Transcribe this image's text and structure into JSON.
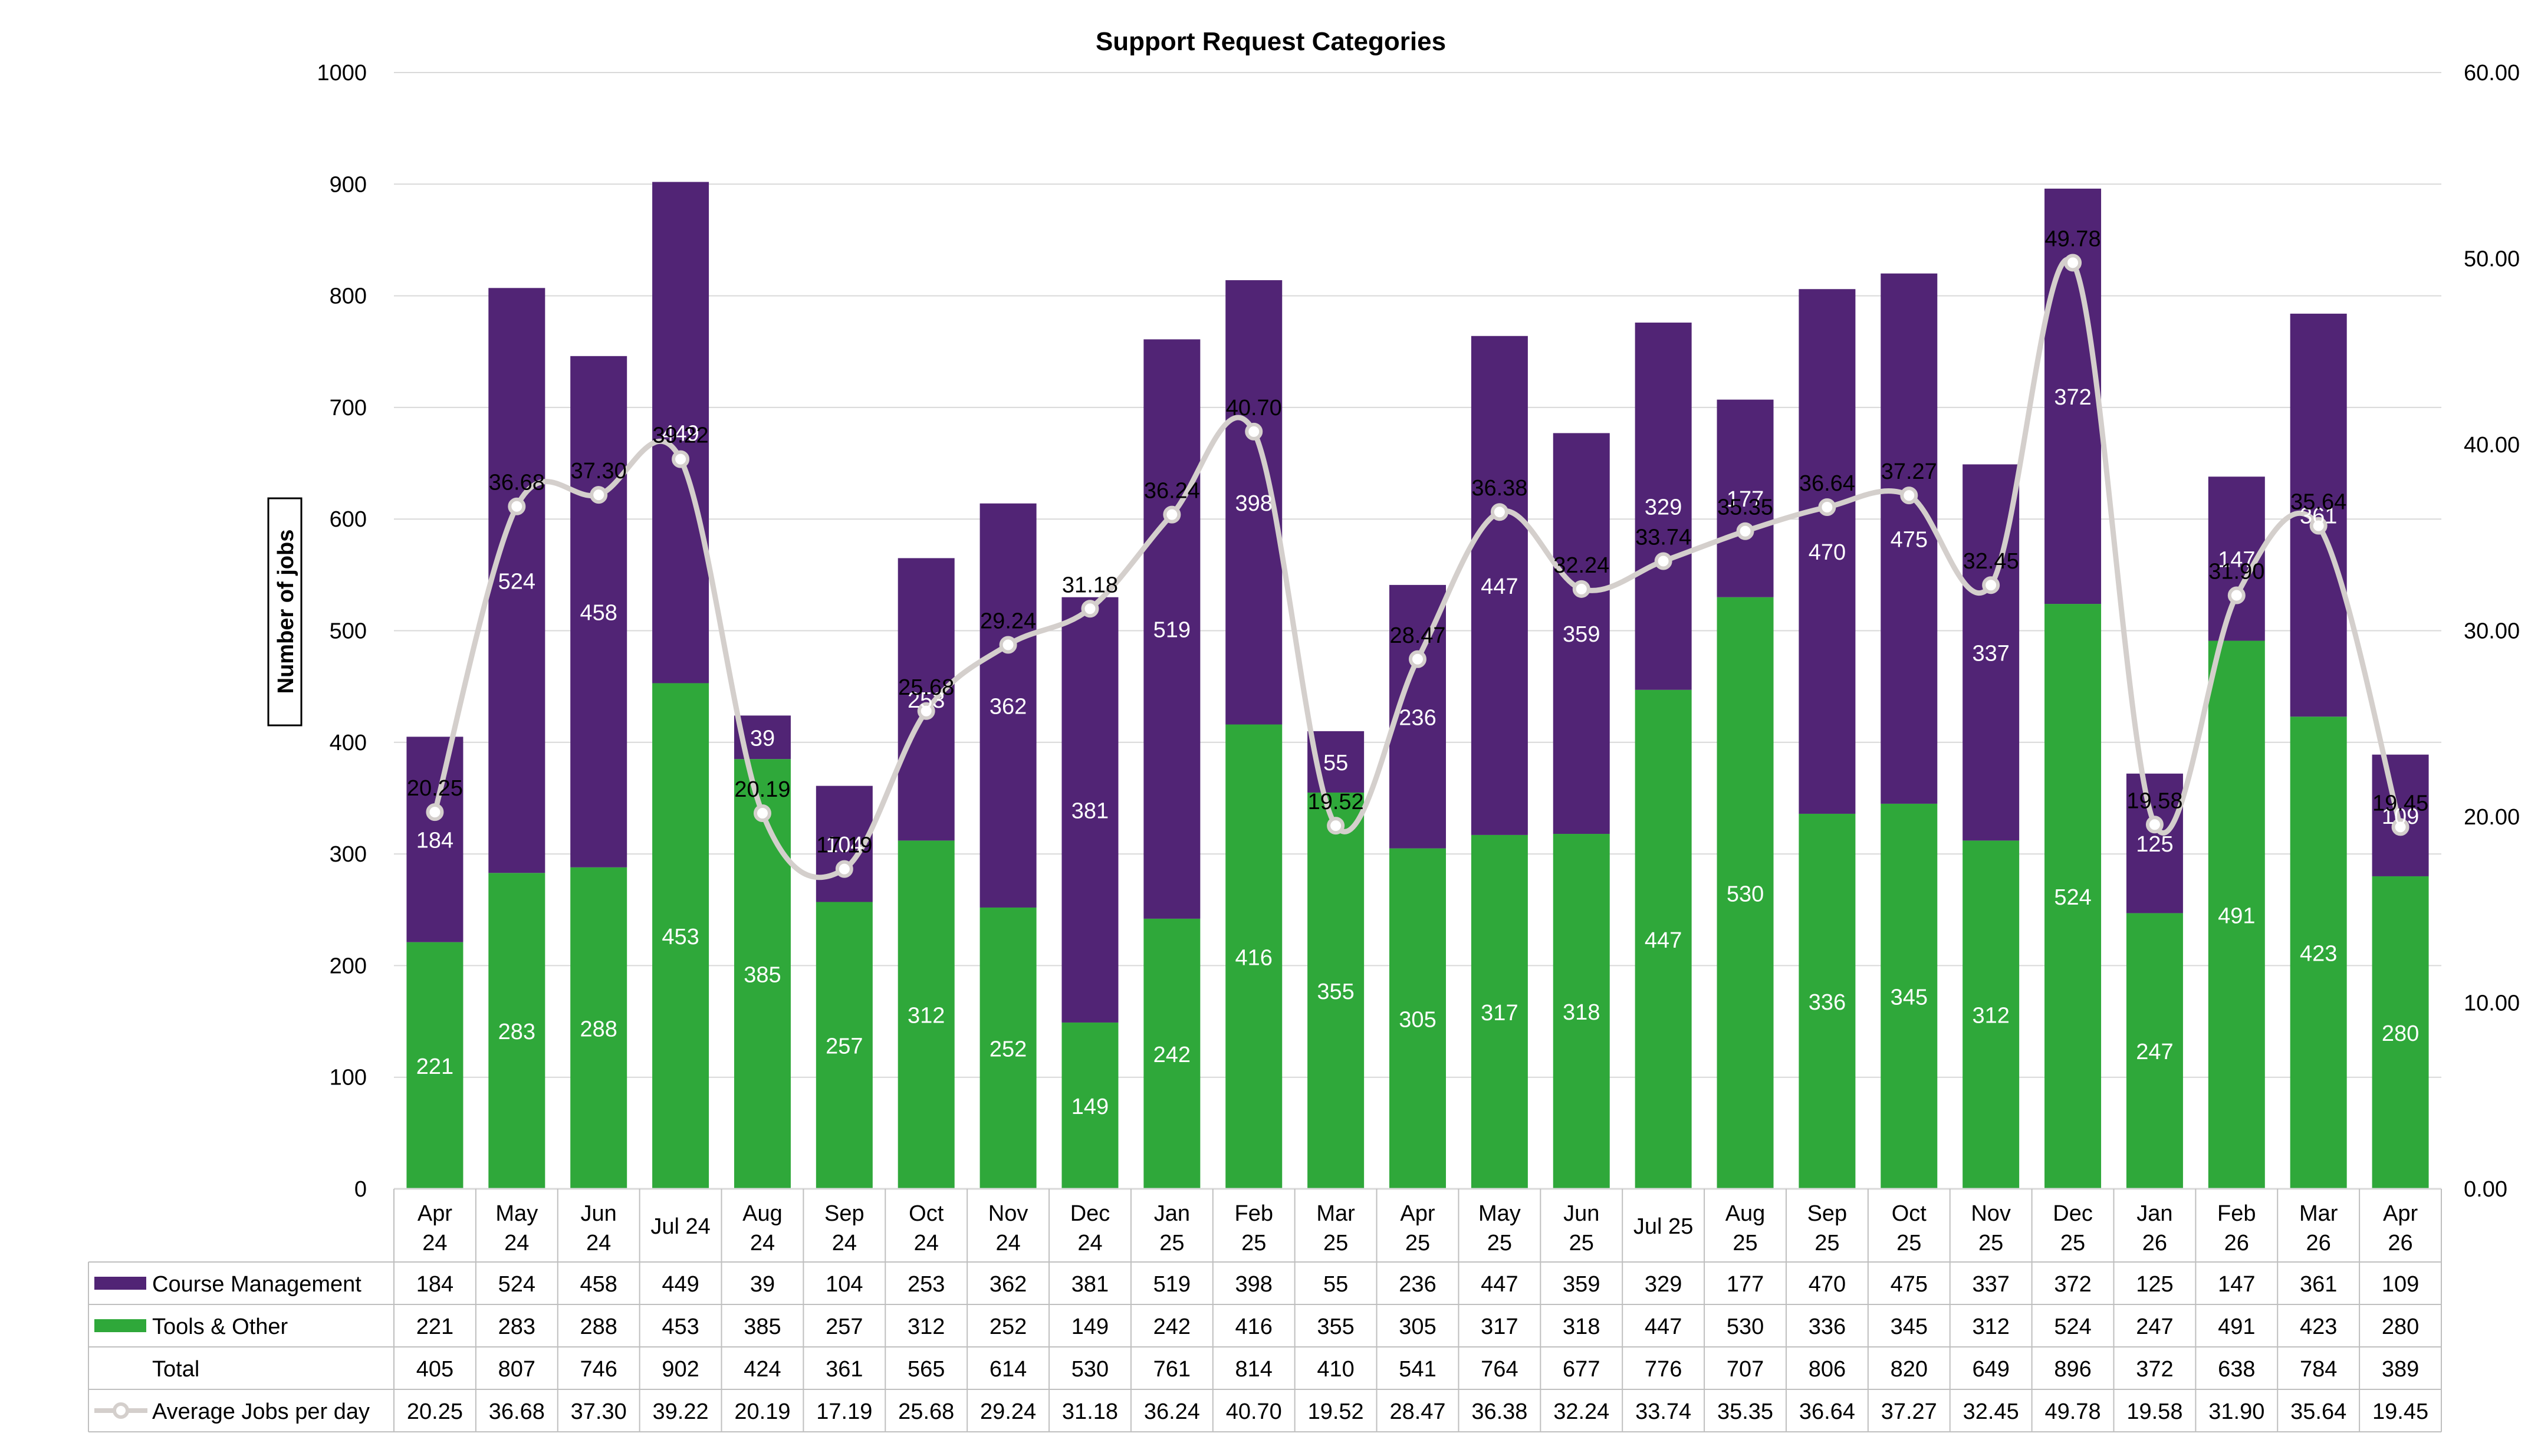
{
  "chart_data": {
    "type": "bar",
    "stacked": true,
    "title": "Support Request Categories",
    "ylabel": "Number of jobs",
    "ylim": [
      0,
      1000
    ],
    "yticks": [
      0,
      100,
      200,
      300,
      400,
      500,
      600,
      700,
      800,
      900,
      1000
    ],
    "y2lim": [
      0,
      60
    ],
    "y2ticks": [
      "0.00",
      "10.00",
      "20.00",
      "30.00",
      "40.00",
      "50.00",
      "60.00"
    ],
    "grid": true,
    "legend": "data-table",
    "categories": [
      [
        "Apr",
        "24"
      ],
      [
        "May",
        "24"
      ],
      [
        "Jun",
        "24"
      ],
      [
        "Jul 24"
      ],
      [
        "Aug",
        "24"
      ],
      [
        "Sep",
        "24"
      ],
      [
        "Oct",
        "24"
      ],
      [
        "Nov",
        "24"
      ],
      [
        "Dec",
        "24"
      ],
      [
        "Jan",
        "25"
      ],
      [
        "Feb",
        "25"
      ],
      [
        "Mar",
        "25"
      ],
      [
        "Apr",
        "25"
      ],
      [
        "May",
        "25"
      ],
      [
        "Jun",
        "25"
      ],
      [
        "Jul 25"
      ],
      [
        "Aug",
        "25"
      ],
      [
        "Sep",
        "25"
      ],
      [
        "Oct",
        "25"
      ],
      [
        "Nov",
        "25"
      ],
      [
        "Dec",
        "25"
      ],
      [
        "Jan",
        "26"
      ],
      [
        "Feb",
        "26"
      ],
      [
        "Mar",
        "26"
      ],
      [
        "Apr",
        "26"
      ]
    ],
    "series": [
      {
        "name": "Tools & Other",
        "kind": "bar",
        "color": "#2fa83a",
        "values": [
          221,
          283,
          288,
          453,
          385,
          257,
          312,
          252,
          149,
          242,
          416,
          355,
          305,
          317,
          318,
          447,
          530,
          336,
          345,
          312,
          524,
          247,
          491,
          423,
          280
        ]
      },
      {
        "name": "Course Management",
        "kind": "bar",
        "color": "#512475",
        "values": [
          184,
          524,
          458,
          449,
          39,
          104,
          253,
          362,
          381,
          519,
          398,
          55,
          236,
          447,
          359,
          329,
          177,
          470,
          475,
          337,
          372,
          125,
          147,
          361,
          109
        ]
      },
      {
        "name": "Average Jobs per day",
        "kind": "line",
        "axis": "secondary",
        "color": "#d4cfcc",
        "values": [
          20.25,
          36.68,
          37.3,
          39.22,
          20.19,
          17.19,
          25.68,
          29.24,
          31.18,
          36.24,
          40.7,
          19.52,
          28.47,
          36.38,
          32.24,
          33.74,
          35.35,
          36.64,
          37.27,
          32.45,
          49.78,
          19.58,
          31.9,
          35.64,
          19.45
        ]
      }
    ],
    "table": {
      "rows": [
        {
          "label": "Course Management",
          "key": "course",
          "swatch": "bar",
          "color": "#512475",
          "values": [
            "184",
            "524",
            "458",
            "449",
            "39",
            "104",
            "253",
            "362",
            "381",
            "519",
            "398",
            "55",
            "236",
            "447",
            "359",
            "329",
            "177",
            "470",
            "475",
            "337",
            "372",
            "125",
            "147",
            "361",
            "109"
          ]
        },
        {
          "label": "Tools & Other",
          "key": "tools",
          "swatch": "bar",
          "color": "#2fa83a",
          "values": [
            "221",
            "283",
            "288",
            "453",
            "385",
            "257",
            "312",
            "252",
            "149",
            "242",
            "416",
            "355",
            "305",
            "317",
            "318",
            "447",
            "530",
            "336",
            "345",
            "312",
            "524",
            "247",
            "491",
            "423",
            "280"
          ]
        },
        {
          "label": "Total",
          "key": "total",
          "swatch": "none",
          "color": "",
          "values": [
            "405",
            "807",
            "746",
            "902",
            "424",
            "361",
            "565",
            "614",
            "530",
            "761",
            "814",
            "410",
            "541",
            "764",
            "677",
            "776",
            "707",
            "806",
            "820",
            "649",
            "896",
            "372",
            "638",
            "784",
            "389"
          ]
        },
        {
          "label": "Average Jobs per day",
          "key": "avg",
          "swatch": "line",
          "color": "#d4cfcc",
          "values": [
            "20.25",
            "36.68",
            "37.30",
            "39.22",
            "20.19",
            "17.19",
            "25.68",
            "29.24",
            "31.18",
            "36.24",
            "40.70",
            "19.52",
            "28.47",
            "36.38",
            "32.24",
            "33.74",
            "35.35",
            "36.64",
            "37.27",
            "32.45",
            "49.78",
            "19.58",
            "31.90",
            "35.64",
            "19.45"
          ]
        }
      ]
    }
  }
}
